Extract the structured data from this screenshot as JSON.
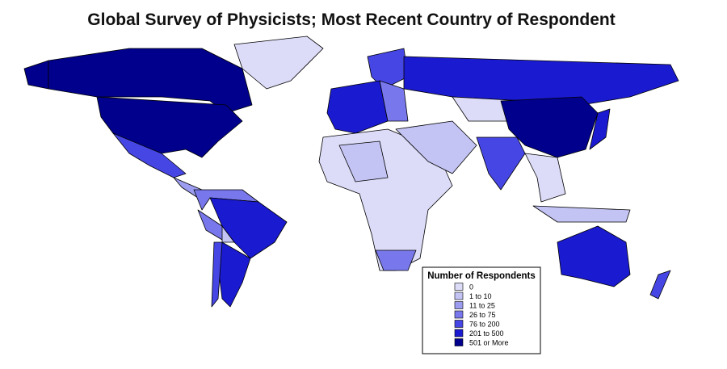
{
  "title": "Global Survey of Physicists; Most Recent Country of Respondent",
  "legend": {
    "title": "Number of Respondents",
    "items": [
      {
        "label": "0",
        "color": "#dcdcf8"
      },
      {
        "label": "1 to 10",
        "color": "#c4c4f4"
      },
      {
        "label": "11 to 25",
        "color": "#9c9cf0"
      },
      {
        "label": "26 to 75",
        "color": "#7878ec"
      },
      {
        "label": "76 to 200",
        "color": "#4646e4"
      },
      {
        "label": "201 to 500",
        "color": "#1a1ad0"
      },
      {
        "label": "501 or More",
        "color": "#00008c"
      }
    ]
  }
}
